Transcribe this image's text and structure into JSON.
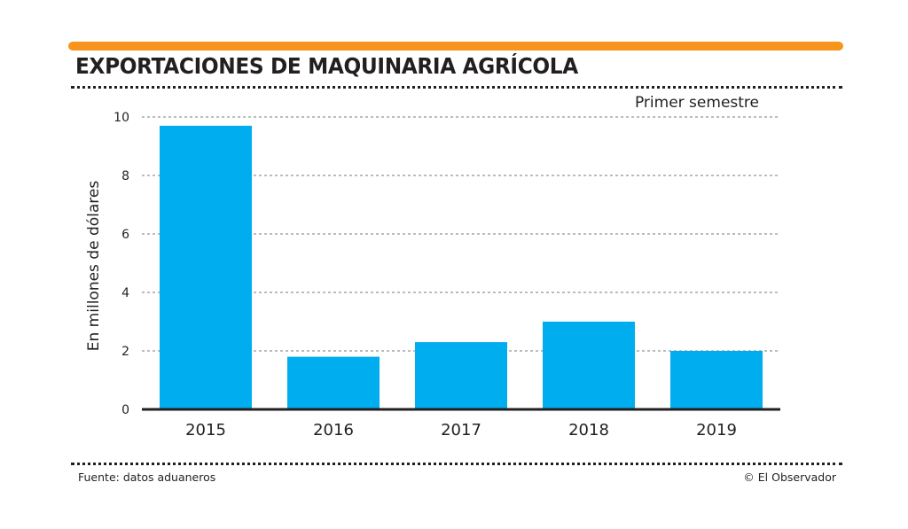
{
  "header": {
    "title": "EXPORTACIONES DE MAQUINARIA AGRÍCOLA",
    "subtitle": "Primer semestre"
  },
  "footer": {
    "source": "Fuente: datos aduaneros",
    "credit": "© El Observador"
  },
  "colors": {
    "accent": "#f7941d",
    "bar": "#00aeef",
    "text": "#231f20"
  },
  "chart_data": {
    "type": "bar",
    "title": "EXPORTACIONES DE MAQUINARIA AGRÍCOLA",
    "subtitle": "Primer semestre",
    "xlabel": "",
    "ylabel": "En millones de dólares",
    "categories": [
      "2015",
      "2016",
      "2017",
      "2018",
      "2019"
    ],
    "values": [
      9.7,
      1.8,
      2.3,
      3.0,
      2.0
    ],
    "ylim": [
      0,
      10
    ],
    "yticks": [
      0,
      2,
      4,
      6,
      8,
      10
    ],
    "grid": true,
    "legend": "none"
  }
}
